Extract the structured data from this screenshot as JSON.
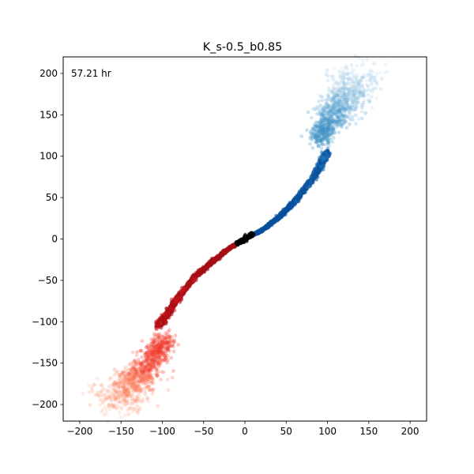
{
  "chart_data": {
    "type": "scatter",
    "title": "K_s-0.5_b0.85",
    "annotation": "57.21 hr",
    "xlabel": "",
    "ylabel": "",
    "xlim": [
      -220,
      220
    ],
    "ylim": [
      -220,
      220
    ],
    "xticks": [
      -200,
      -150,
      -100,
      -50,
      0,
      50,
      100,
      150,
      200
    ],
    "yticks": [
      -200,
      -150,
      -100,
      -50,
      0,
      50,
      100,
      150,
      200
    ],
    "xtick_labels": [
      "−200",
      "−150",
      "−100",
      "−50",
      "0",
      "50",
      "100",
      "150",
      "200"
    ],
    "ytick_labels": [
      "−200",
      "−150",
      "−100",
      "−50",
      "0",
      "50",
      "100",
      "150",
      "200"
    ],
    "grid": false,
    "series": [
      {
        "colormap": "Blues",
        "path": [
          [
            0,
            0
          ],
          [
            20,
            10
          ],
          [
            40,
            25
          ],
          [
            60,
            45
          ],
          [
            80,
            70
          ],
          [
            92,
            90
          ],
          [
            100,
            105
          ]
        ],
        "cloud": [
          [
            88,
            118
          ],
          [
            98,
            135
          ],
          [
            108,
            150
          ],
          [
            118,
            165
          ],
          [
            128,
            180
          ],
          [
            135,
            195
          ]
        ]
      },
      {
        "colormap": "Reds",
        "path": [
          [
            0,
            0
          ],
          [
            -20,
            -12
          ],
          [
            -40,
            -28
          ],
          [
            -60,
            -45
          ],
          [
            -80,
            -70
          ],
          [
            -95,
            -92
          ],
          [
            -105,
            -105
          ]
        ],
        "cloud": [
          [
            -95,
            -120
          ],
          [
            -108,
            -138
          ],
          [
            -120,
            -155
          ],
          [
            -132,
            -172
          ],
          [
            -145,
            -185
          ],
          [
            -160,
            -198
          ]
        ]
      }
    ],
    "origin_color": "#000000"
  }
}
